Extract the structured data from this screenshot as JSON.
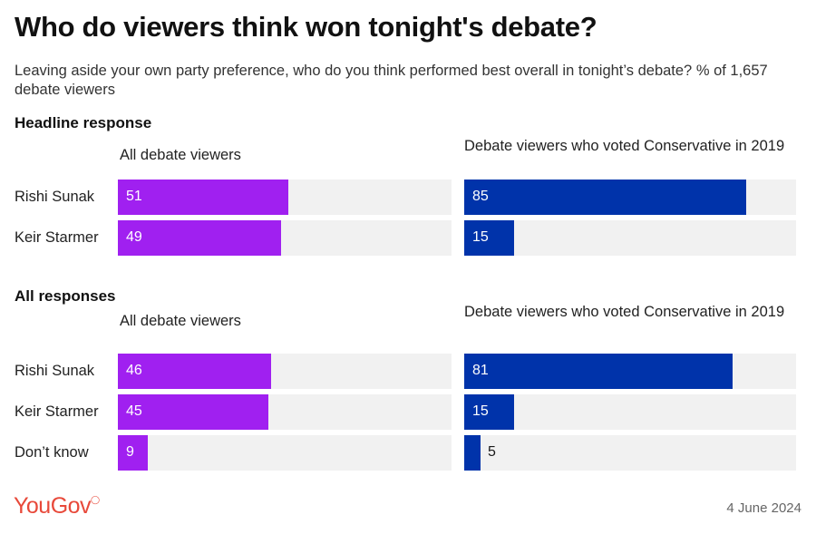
{
  "header": {
    "title": "Who do viewers think won tonight's debate?",
    "subtitle": "Leaving aside your own party preference, who do you think performed best overall in tonight’s debate? % of 1,657 debate viewers"
  },
  "footer": {
    "brand": "YouGov",
    "date": "4 June 2024"
  },
  "colors": {
    "all_viewers": "#a020f0",
    "conservative_2019": "#0033aa",
    "track": "#f1f1f1"
  },
  "chart_data": [
    {
      "type": "bar",
      "orientation": "horizontal",
      "title": "Headline response",
      "categories": [
        "Rishi Sunak",
        "Keir Starmer"
      ],
      "xlim": [
        0,
        100
      ],
      "series": [
        {
          "name": "All debate viewers",
          "values": [
            51,
            49
          ]
        },
        {
          "name": "Debate viewers who voted Conservative in 2019",
          "values": [
            85,
            15
          ]
        }
      ]
    },
    {
      "type": "bar",
      "orientation": "horizontal",
      "title": "All responses",
      "categories": [
        "Rishi Sunak",
        "Keir Starmer",
        "Don’t know"
      ],
      "xlim": [
        0,
        100
      ],
      "series": [
        {
          "name": "All debate viewers",
          "values": [
            46,
            45,
            9
          ]
        },
        {
          "name": "Debate viewers who voted Conservative in 2019",
          "values": [
            81,
            15,
            5
          ]
        }
      ]
    }
  ]
}
